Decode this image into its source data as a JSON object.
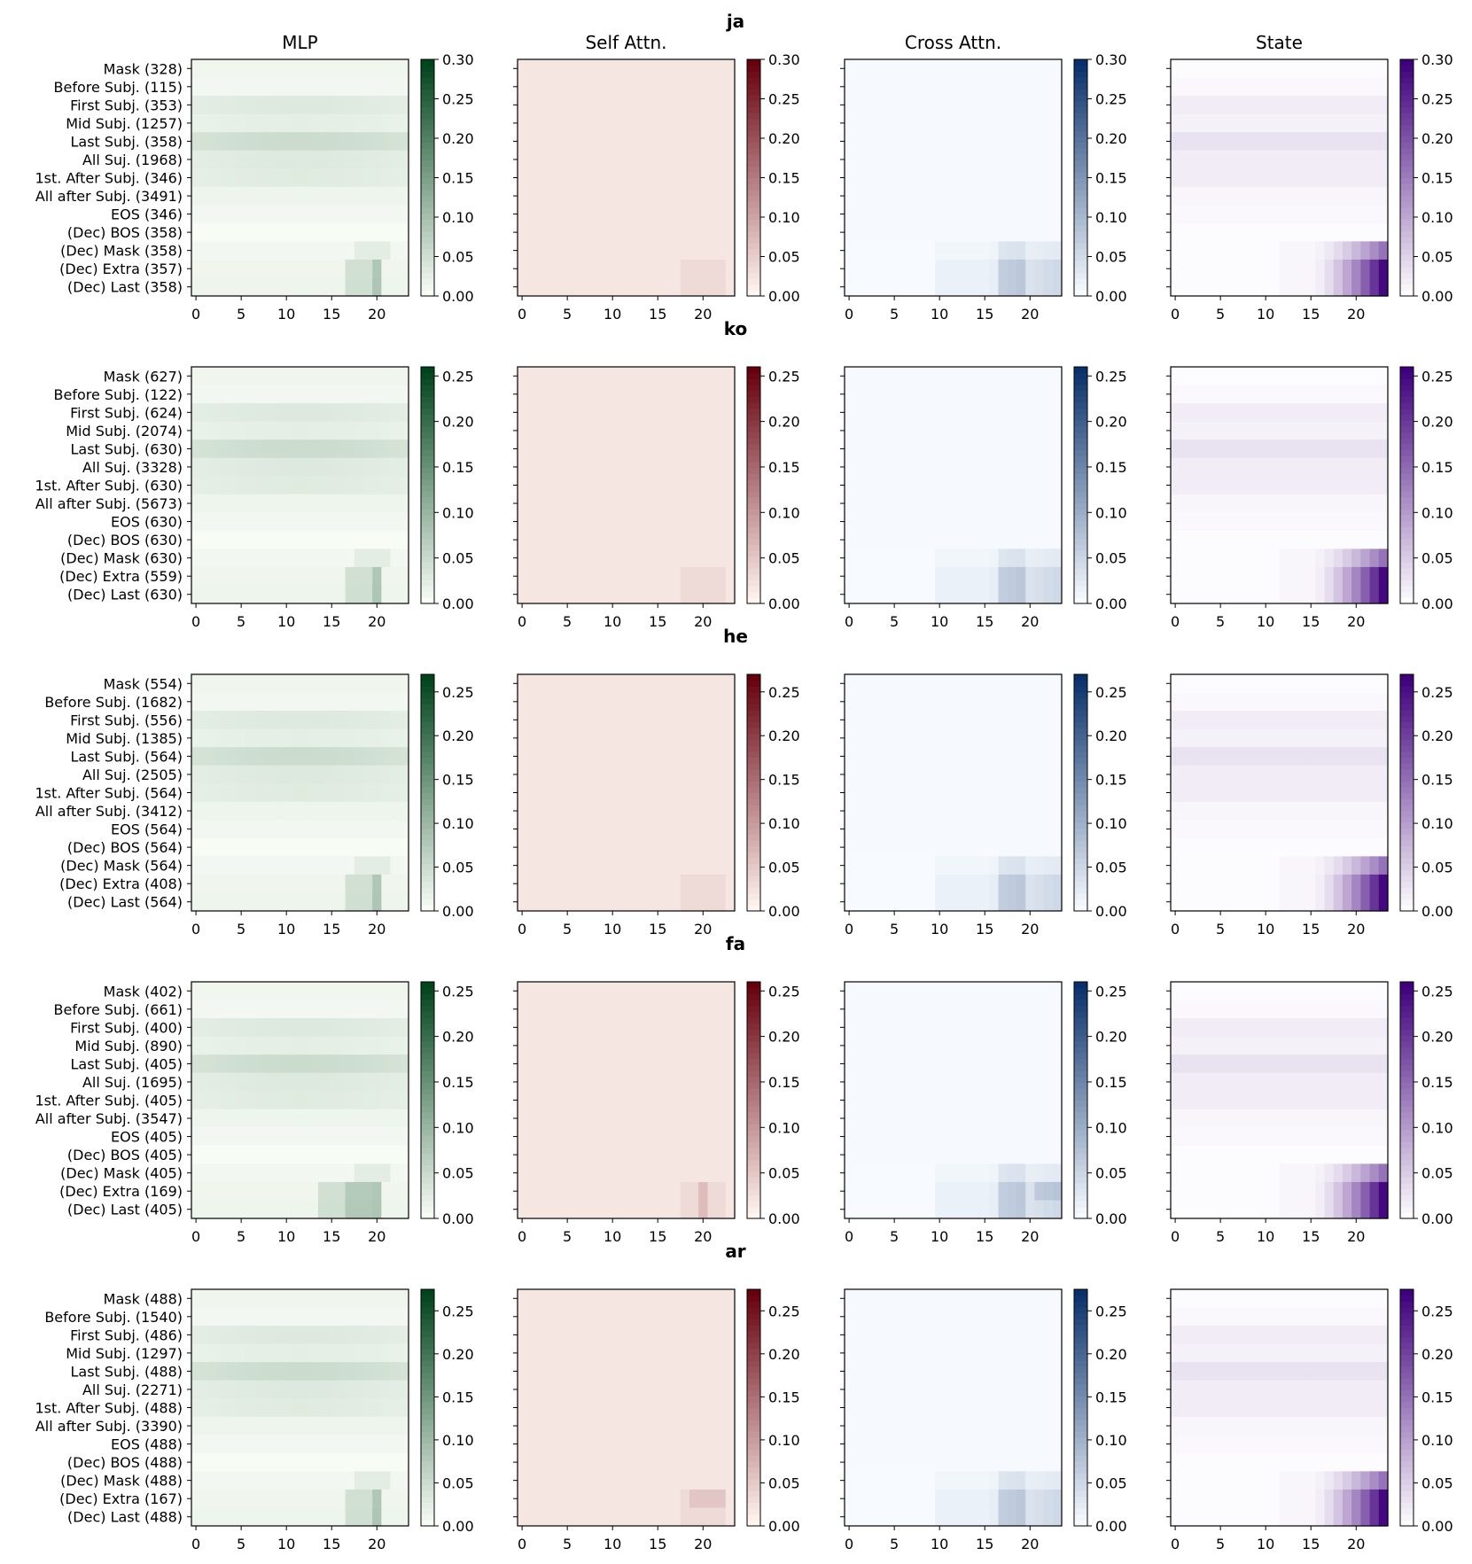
{
  "figure": {
    "columns": [
      "MLP",
      "Self Attn.",
      "Cross Attn.",
      "State"
    ],
    "colormaps": {
      "MLP": {
        "name": "Greens",
        "light": "#f7fcf5",
        "dark": "#00441b"
      },
      "Self Attn.": {
        "name": "Reds",
        "light": "#fff5f0",
        "dark": "#67000d"
      },
      "Cross Attn.": {
        "name": "Blues",
        "light": "#f7fbff",
        "dark": "#08306b"
      },
      "State": {
        "name": "Purples",
        "light": "#fcfbfd",
        "dark": "#3f007d"
      }
    },
    "x_ticks": [
      0,
      5,
      10,
      15,
      20
    ],
    "num_layers": 24
  },
  "chart_data": [
    {
      "type": "heatmap",
      "title": "ja",
      "columns": [
        "MLP",
        "Self Attn.",
        "Cross Attn.",
        "State"
      ],
      "row_labels": [
        "Mask (328)",
        "Before Subj. (115)",
        "First Subj. (353)",
        "Mid Subj. (1257)",
        "Last Subj. (358)",
        "All Suj. (1968)",
        "1st. After Subj. (346)",
        "All after Subj. (3491)",
        "EOS (346)",
        "(Dec) BOS (358)",
        "(Dec) Mask (358)",
        "(Dec) Extra (357)",
        "(Dec) Last (358)"
      ],
      "colorbar_ticks": [
        "0.00",
        "0.05",
        "0.10",
        "0.15",
        "0.20",
        "0.25",
        "0.30"
      ],
      "vmax": 0.3,
      "xlim": [
        0,
        23
      ]
    },
    {
      "type": "heatmap",
      "title": "ko",
      "columns": [
        "MLP",
        "Self Attn.",
        "Cross Attn.",
        "State"
      ],
      "row_labels": [
        "Mask (627)",
        "Before Subj. (122)",
        "First Subj. (624)",
        "Mid Subj. (2074)",
        "Last Subj. (630)",
        "All Suj. (3328)",
        "1st. After Subj. (630)",
        "All after Subj. (5673)",
        "EOS (630)",
        "(Dec) BOS (630)",
        "(Dec) Mask (630)",
        "(Dec) Extra (559)",
        "(Dec) Last (630)"
      ],
      "colorbar_ticks": [
        "0.00",
        "0.05",
        "0.10",
        "0.15",
        "0.20",
        "0.25"
      ],
      "vmax": 0.26,
      "xlim": [
        0,
        23
      ]
    },
    {
      "type": "heatmap",
      "title": "he",
      "columns": [
        "MLP",
        "Self Attn.",
        "Cross Attn.",
        "State"
      ],
      "row_labels": [
        "Mask (554)",
        "Before Subj. (1682)",
        "First Subj. (556)",
        "Mid Subj. (1385)",
        "Last Subj. (564)",
        "All Suj. (2505)",
        "1st. After Subj. (564)",
        "All after Subj. (3412)",
        "EOS (564)",
        "(Dec) BOS (564)",
        "(Dec) Mask (564)",
        "(Dec) Extra (408)",
        "(Dec) Last (564)"
      ],
      "colorbar_ticks": [
        "0.00",
        "0.05",
        "0.10",
        "0.15",
        "0.20",
        "0.25"
      ],
      "vmax": 0.27,
      "xlim": [
        0,
        23
      ]
    },
    {
      "type": "heatmap",
      "title": "fa",
      "columns": [
        "MLP",
        "Self Attn.",
        "Cross Attn.",
        "State"
      ],
      "row_labels": [
        "Mask (402)",
        "Before Subj. (661)",
        "First Subj. (400)",
        "Mid Subj. (890)",
        "Last Subj. (405)",
        "All Suj. (1695)",
        "1st. After Subj. (405)",
        "All after Subj. (3547)",
        "EOS (405)",
        "(Dec) BOS (405)",
        "(Dec) Mask (405)",
        "(Dec) Extra (169)",
        "(Dec) Last (405)"
      ],
      "colorbar_ticks": [
        "0.00",
        "0.05",
        "0.10",
        "0.15",
        "0.20",
        "0.25"
      ],
      "vmax": 0.26,
      "xlim": [
        0,
        23
      ]
    },
    {
      "type": "heatmap",
      "title": "ar",
      "columns": [
        "MLP",
        "Self Attn.",
        "Cross Attn.",
        "State"
      ],
      "row_labels": [
        "Mask (488)",
        "Before Subj. (1540)",
        "First Subj. (486)",
        "Mid Subj. (1297)",
        "Last Subj. (488)",
        "All Suj. (2271)",
        "1st. After Subj. (488)",
        "All after Subj. (3390)",
        "EOS (488)",
        "(Dec) BOS (488)",
        "(Dec) Mask (488)",
        "(Dec) Extra (167)",
        "(Dec) Last (488)"
      ],
      "colorbar_ticks": [
        "0.00",
        "0.05",
        "0.10",
        "0.15",
        "0.20",
        "0.25"
      ],
      "vmax": 0.275,
      "xlim": [
        0,
        23
      ]
    }
  ]
}
